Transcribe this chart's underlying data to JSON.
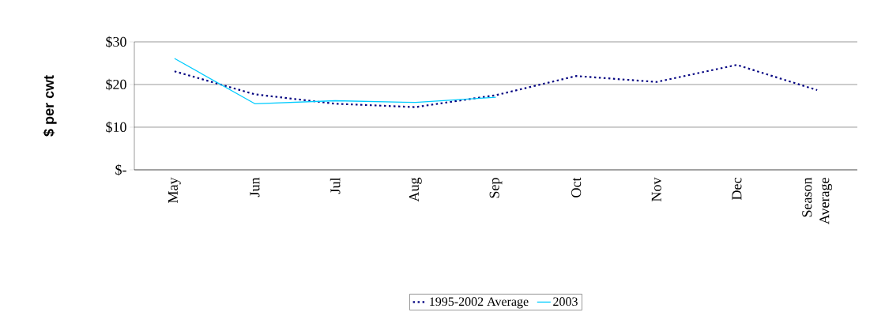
{
  "chart_data": {
    "type": "line",
    "ylabel": "$ per cwt",
    "categories": [
      "May",
      "Jun",
      "Jul",
      "Aug",
      "Sep",
      "Oct",
      "Nov",
      "Dec",
      "Season Average"
    ],
    "series": [
      {
        "name": "1995-2002 Average",
        "color": "#000080",
        "line_style": "dotted",
        "values": [
          23.1,
          17.7,
          15.5,
          14.7,
          17.5,
          22.0,
          20.6,
          24.6,
          18.7
        ]
      },
      {
        "name": "2003",
        "color": "#00ccff",
        "line_style": "solid",
        "values": [
          26.1,
          15.5,
          16.2,
          15.8,
          17.0,
          null,
          null,
          null,
          null
        ]
      }
    ],
    "ylim": [
      0,
      30
    ],
    "yticks": [
      {
        "value": 0,
        "label": "$-"
      },
      {
        "value": 10,
        "label": "$10"
      },
      {
        "value": 20,
        "label": "$20"
      },
      {
        "value": 30,
        "label": "$30"
      }
    ],
    "grid": "y",
    "legend": "bottom",
    "marker": "none"
  }
}
